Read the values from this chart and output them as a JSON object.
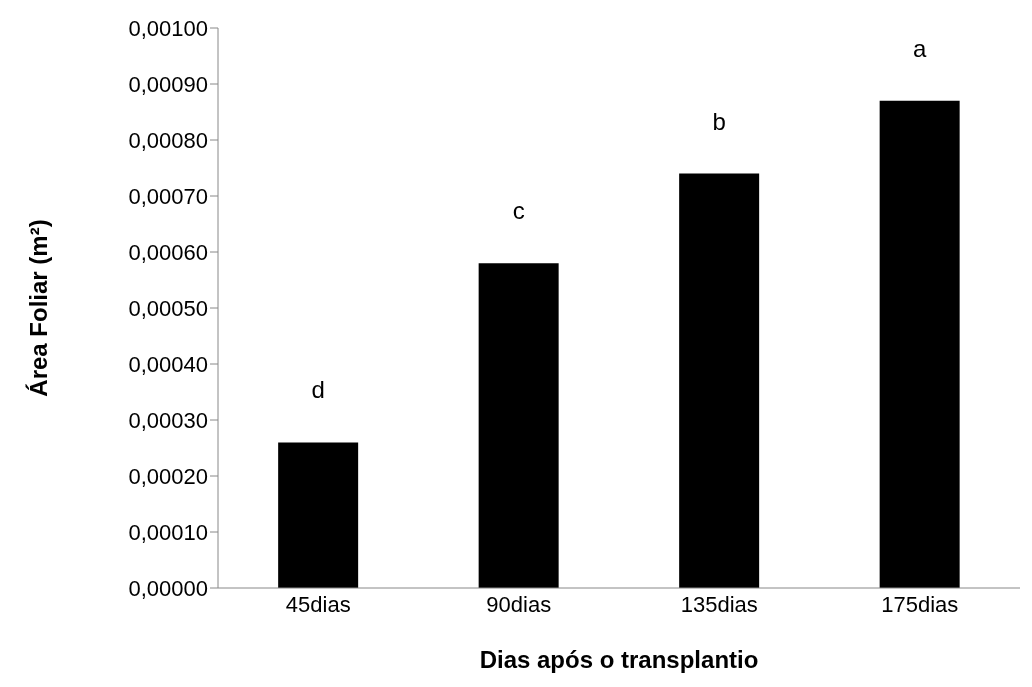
{
  "chart_data": {
    "type": "bar",
    "xlabel": "Dias após o transplantio",
    "ylabel": "Área Foliar (m²)",
    "categories": [
      "45dias",
      "90dias",
      "135dias",
      "175dias"
    ],
    "values": [
      0.00026,
      0.00058,
      0.00074,
      0.00087
    ],
    "color": "#000000",
    "ylim": [
      0,
      0.001
    ],
    "yticks": [
      {
        "value": 0,
        "label": "0,00000"
      },
      {
        "value": 0.0001,
        "label": "0,00010"
      },
      {
        "value": 0.0002,
        "label": "0,00020"
      },
      {
        "value": 0.0003,
        "label": "0,00030"
      },
      {
        "value": 0.0004,
        "label": "0,00040"
      },
      {
        "value": 0.0005,
        "label": "0,00050"
      },
      {
        "value": 0.0006,
        "label": "0,00060"
      },
      {
        "value": 0.0007,
        "label": "0,00070"
      },
      {
        "value": 0.0008,
        "label": "0,00080"
      },
      {
        "value": 0.0009,
        "label": "0,00090"
      },
      {
        "value": 0.001,
        "label": "0,00100"
      }
    ],
    "annotations": [
      "d",
      "c",
      "b",
      "a"
    ],
    "grid": false,
    "legend": false
  }
}
